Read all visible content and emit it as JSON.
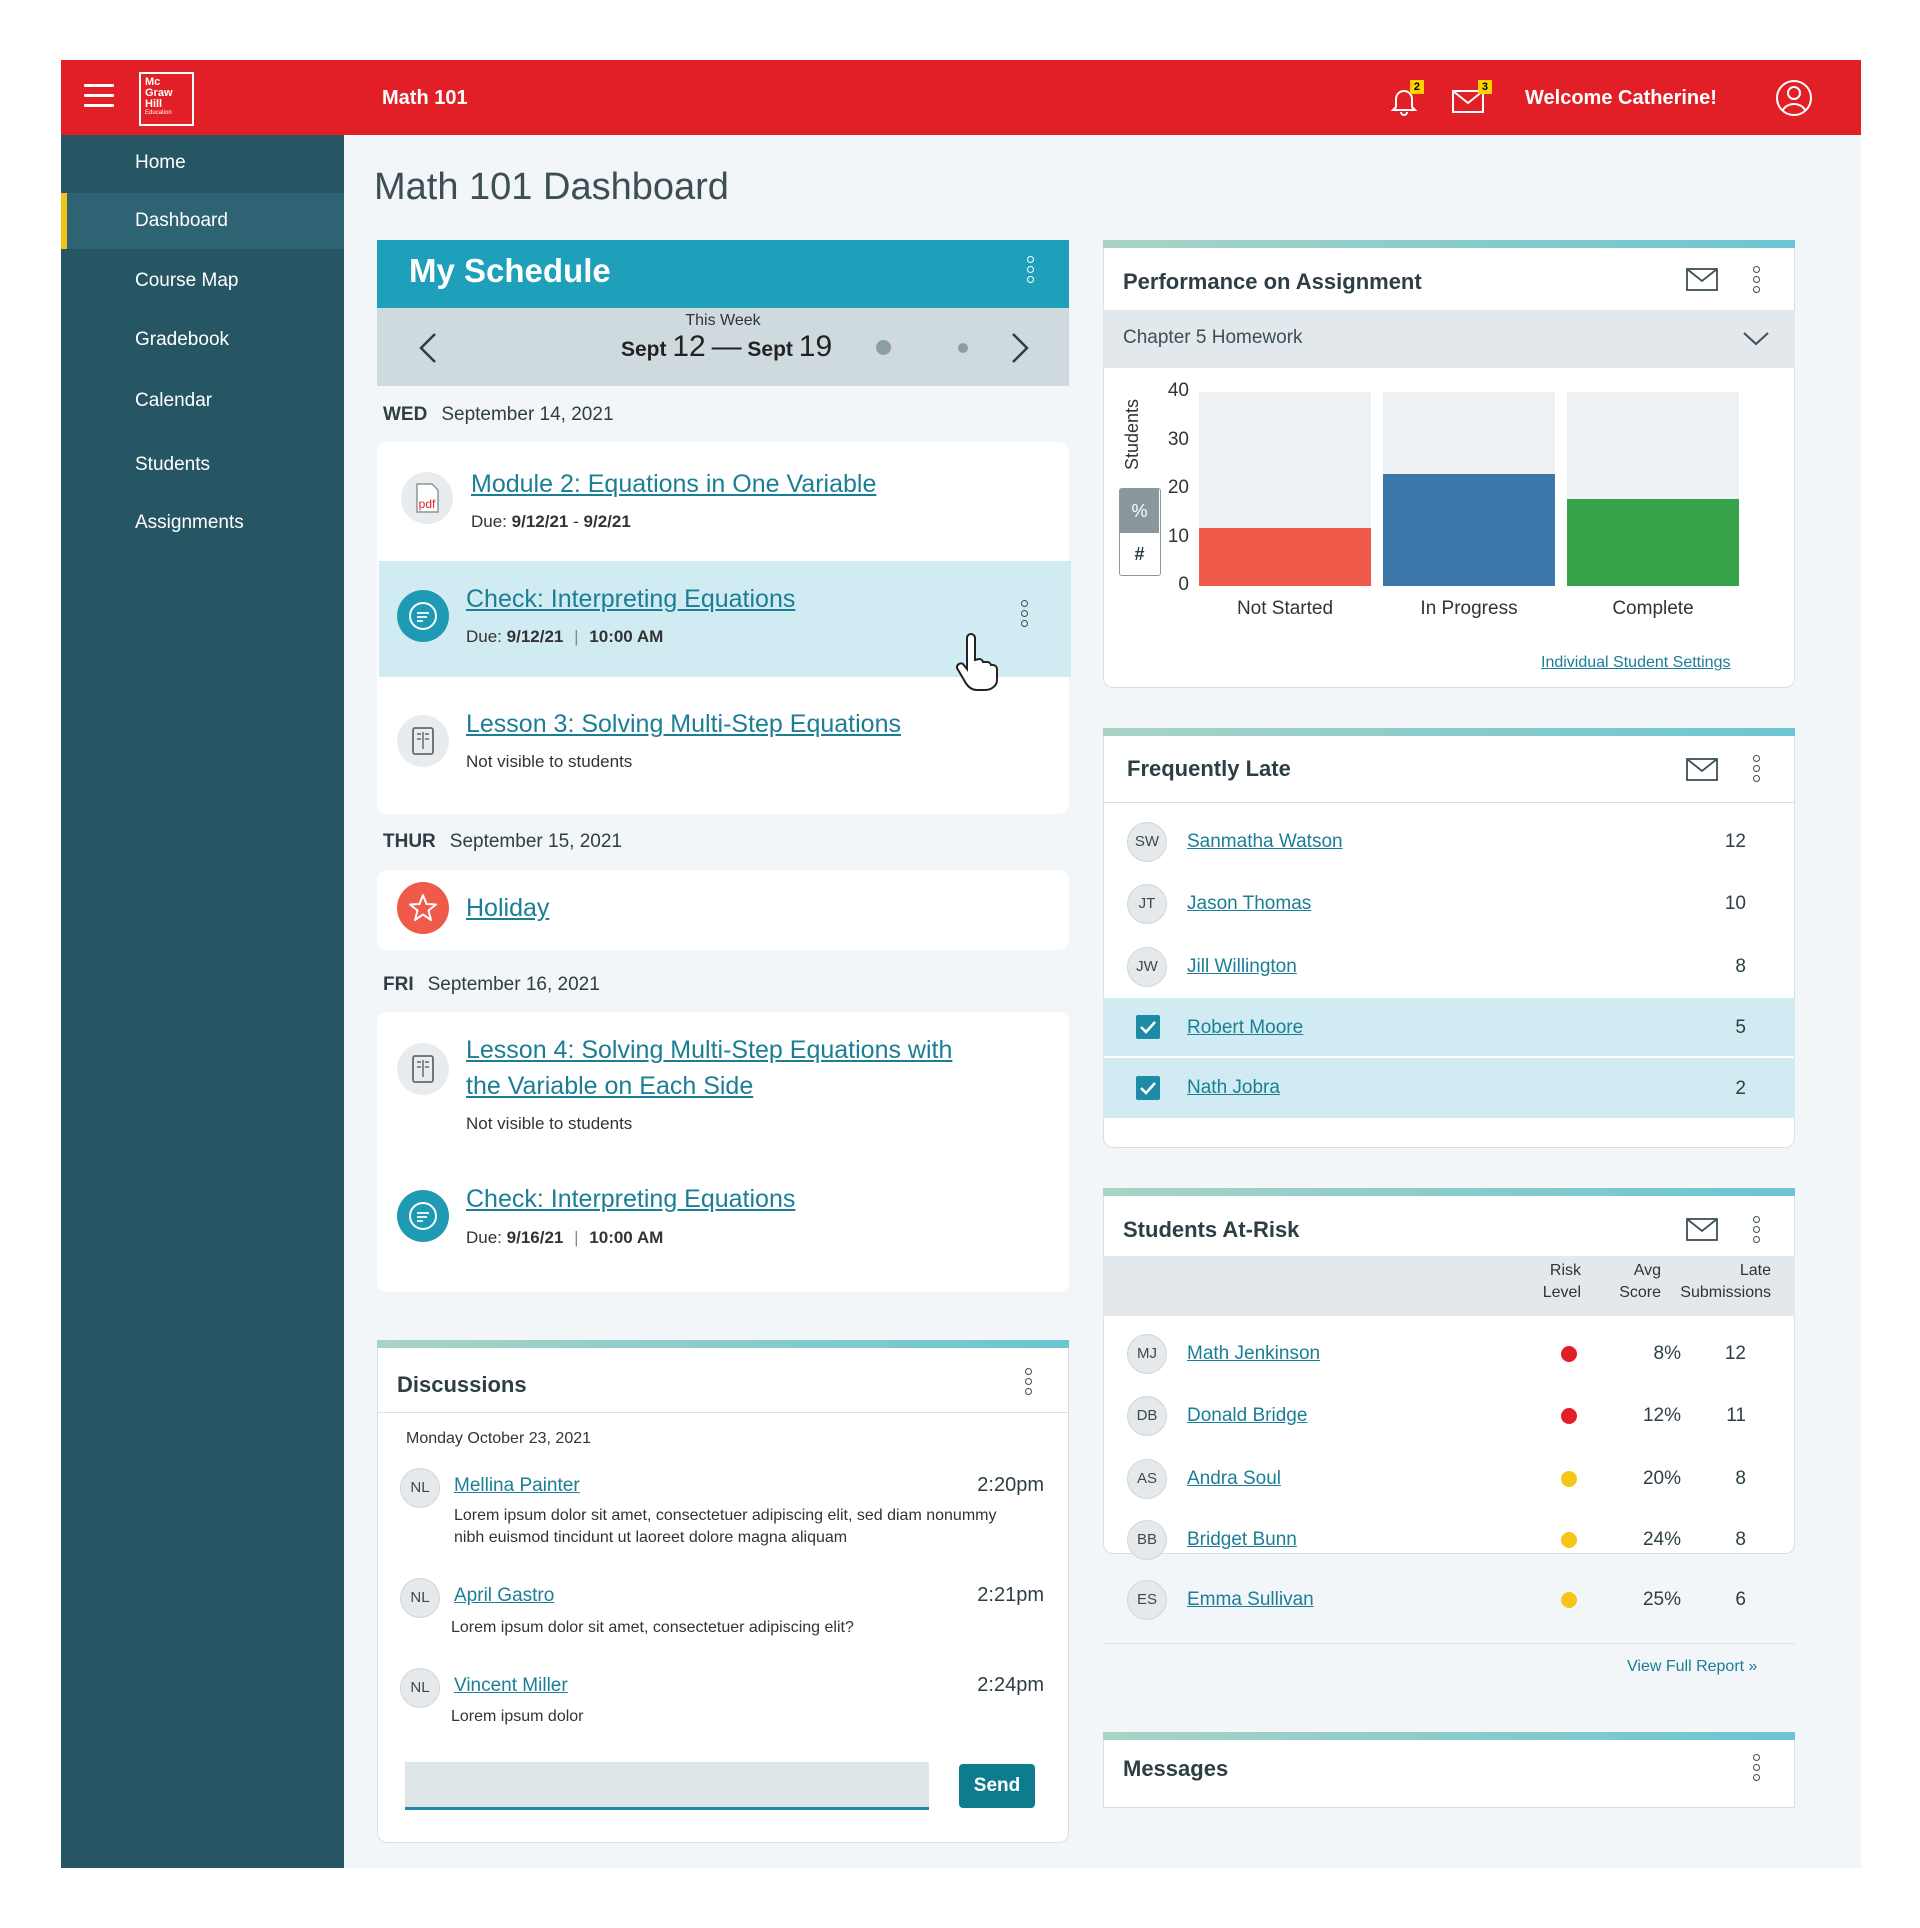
{
  "header": {
    "logo_lines": [
      "Mc",
      "Graw",
      "Hill",
      "Education"
    ],
    "course": "Math 101",
    "notifications_count": "2",
    "messages_count": "3",
    "welcome": "Welcome Catherine!",
    "brand_color": "#e21f26"
  },
  "sidebar": {
    "items": [
      {
        "label": "Home"
      },
      {
        "label": "Dashboard"
      },
      {
        "label": "Course Map"
      },
      {
        "label": "Gradebook"
      },
      {
        "label": "Calendar"
      },
      {
        "label": "Students"
      },
      {
        "label": "Assignments"
      }
    ],
    "active": "Dashboard"
  },
  "page_title": "Math 101 Dashboard",
  "schedule": {
    "title": "My Schedule",
    "week_label": "This Week",
    "week_start_month": "Sept",
    "week_start_day": "12",
    "week_sep": "—",
    "week_end_month": "Sept",
    "week_end_day": "19",
    "days": [
      {
        "dow": "WED",
        "date": "September 14, 2021"
      },
      {
        "dow": "THUR",
        "date": "September 15, 2021"
      },
      {
        "dow": "FRI",
        "date": "September 16, 2021"
      }
    ],
    "items": [
      {
        "title": "Module 2: Equations in One Variable",
        "due_label": "Due:",
        "due": "9/12/21",
        "due_sep": "-",
        "due_end": "9/2/21",
        "icon": "pdf-icon"
      },
      {
        "title": "Check: Interpreting Equations",
        "due_label": "Due:",
        "due": "9/12/21",
        "sep": "|",
        "time": "10:00 AM",
        "icon": "chat-icon"
      },
      {
        "title": "Lesson 3: Solving Multi-Step Equations",
        "note": "Not visible to students",
        "icon": "book-icon"
      },
      {
        "title": "Holiday",
        "icon": "star-icon"
      },
      {
        "title_line1": "Lesson 4: Solving Multi-Step Equations with",
        "title_line2": "the Variable on Each Side",
        "note": "Not visible to students",
        "icon": "book-icon"
      },
      {
        "title": "Check: Interpreting Equations",
        "due_label": "Due:",
        "due": "9/16/21",
        "sep": "|",
        "time": "10:00 AM",
        "icon": "chat-icon"
      }
    ],
    "pdf_label": "pdf"
  },
  "performance": {
    "title": "Performance on Assignment",
    "assignment": "Chapter 5 Homework",
    "toggle_percent": "%",
    "toggle_count": "#",
    "link": "Individual Student Settings"
  },
  "chart_data": {
    "type": "bar",
    "categories": [
      "Not Started",
      "In Progress",
      "Complete"
    ],
    "values": [
      12,
      23,
      18
    ],
    "ylabel": "Students",
    "ylim": [
      0,
      40
    ],
    "yticks": [
      40,
      30,
      20,
      10,
      0
    ],
    "colors": [
      "#f05a4a",
      "#3b77a8",
      "#36a34a"
    ],
    "background_color": "#eef2f4"
  },
  "late": {
    "title": "Frequently Late",
    "rows": [
      {
        "initials": "SW",
        "name": "Sanmatha Watson",
        "count": "12",
        "checked": false
      },
      {
        "initials": "JT",
        "name": "Jason Thomas",
        "count": "10",
        "checked": false
      },
      {
        "initials": "JW",
        "name": "Jill Willington",
        "count": "8",
        "checked": false
      },
      {
        "initials": "",
        "name": "Robert Moore",
        "count": "5",
        "checked": true
      },
      {
        "initials": "",
        "name": "Nath Jobra",
        "count": "2",
        "checked": true
      }
    ]
  },
  "atrisk": {
    "title": "Students At-Risk",
    "col_risk_1": "Risk",
    "col_risk_2": "Level",
    "col_avg_1": "Avg",
    "col_avg_2": "Score",
    "col_late_1": "Late",
    "col_late_2": "Submissions",
    "rows": [
      {
        "initials": "MJ",
        "name": "Math Jenkinson",
        "risk": "high",
        "avg": "8%",
        "late": "12"
      },
      {
        "initials": "DB",
        "name": "Donald Bridge",
        "risk": "high",
        "avg": "12%",
        "late": "11"
      },
      {
        "initials": "AS",
        "name": "Andra Soul",
        "risk": "medium",
        "avg": "20%",
        "late": "8"
      },
      {
        "initials": "BB",
        "name": "Bridget Bunn",
        "risk": "medium",
        "avg": "24%",
        "late": "8"
      },
      {
        "initials": "ES",
        "name": "Emma Sullivan",
        "risk": "medium",
        "avg": "25%",
        "late": "6"
      }
    ],
    "risk_colors": {
      "high": "#e21f26",
      "medium": "#f5c518"
    },
    "link": "View Full Report »"
  },
  "discussions": {
    "title": "Discussions",
    "date": "Monday October 23, 2021",
    "posts": [
      {
        "initials": "NL",
        "name": "Mellina Painter",
        "time": "2:20pm",
        "text": "Lorem ipsum dolor sit amet, consectetuer adipiscing elit, sed diam nonummy nibh euismod tincidunt ut laoreet dolore magna aliquam"
      },
      {
        "initials": "NL",
        "name": "April Gastro",
        "time": "2:21pm",
        "text": "Lorem ipsum dolor sit amet, consectetuer adipiscing elit?"
      },
      {
        "initials": "NL",
        "name": "Vincent Miller",
        "time": "2:24pm",
        "text": "Lorem ipsum dolor"
      }
    ],
    "input_value": "",
    "send_label": "Send"
  },
  "messages": {
    "title": "Messages"
  }
}
